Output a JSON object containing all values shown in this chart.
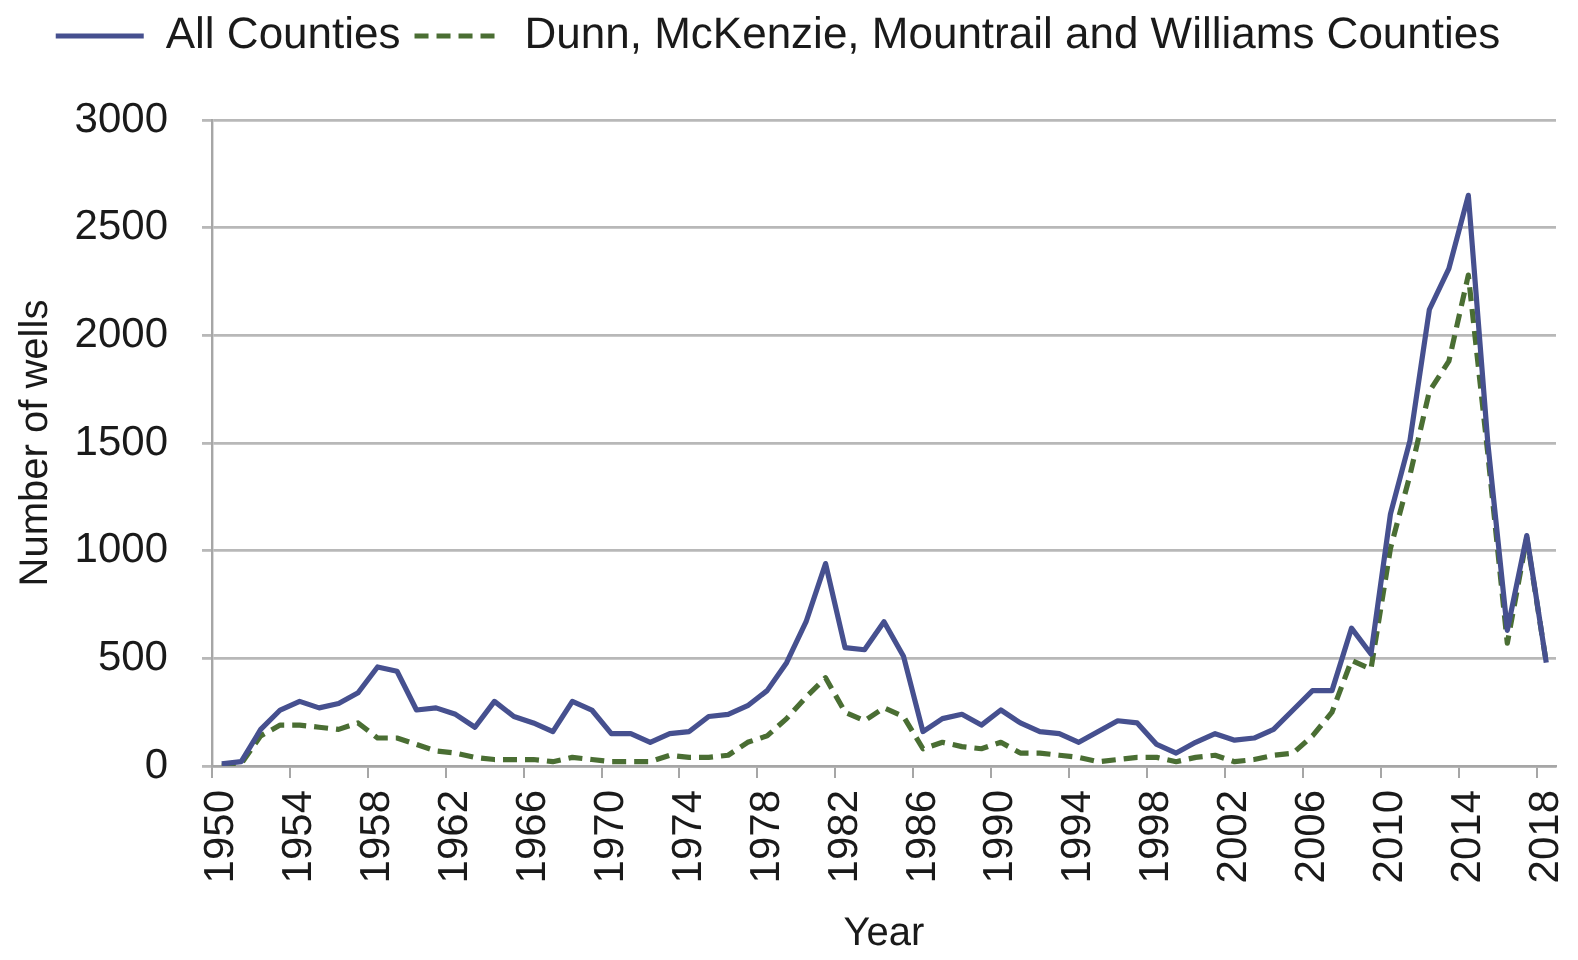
{
  "chart_data": {
    "type": "line",
    "xlabel": "Year",
    "ylabel": "Number of wells",
    "categories": [
      "1950",
      null,
      null,
      null,
      "1954",
      null,
      null,
      null,
      "1958",
      null,
      null,
      null,
      "1962",
      null,
      null,
      null,
      "1966",
      null,
      null,
      null,
      "1970",
      null,
      null,
      null,
      "1974",
      null,
      null,
      null,
      "1978",
      null,
      null,
      null,
      "1982",
      null,
      null,
      null,
      "1986",
      null,
      null,
      null,
      "1990",
      null,
      null,
      null,
      "1994",
      null,
      null,
      null,
      "1998",
      null,
      null,
      null,
      "2002",
      null,
      null,
      null,
      "2006",
      null,
      null,
      null,
      "2010",
      null,
      null,
      null,
      "2014",
      null,
      null,
      null,
      "2018"
    ],
    "series": [
      {
        "name": "All Counties",
        "color": "#46508f",
        "line_style": "solid",
        "values": [
          10,
          20,
          170,
          260,
          300,
          270,
          290,
          340,
          460,
          440,
          260,
          270,
          240,
          180,
          300,
          230,
          200,
          160,
          300,
          260,
          150,
          150,
          110,
          150,
          160,
          230,
          240,
          280,
          350,
          480,
          670,
          940,
          550,
          540,
          670,
          510,
          160,
          220,
          240,
          190,
          260,
          200,
          160,
          150,
          110,
          160,
          210,
          200,
          100,
          60,
          110,
          150,
          120,
          130,
          170,
          260,
          350,
          350,
          640,
          520,
          1170,
          1510,
          2120,
          2310,
          2650,
          1500,
          630,
          1070,
          480
        ]
      },
      {
        "name": "Dunn, McKenzie, Mountrail and Williams Counties",
        "color": "#4a6e33",
        "line_style": "dashed",
        "values": [
          0,
          10,
          140,
          190,
          190,
          180,
          170,
          200,
          130,
          130,
          100,
          70,
          60,
          40,
          30,
          30,
          30,
          20,
          40,
          30,
          20,
          20,
          20,
          50,
          40,
          40,
          50,
          110,
          140,
          220,
          320,
          410,
          250,
          210,
          270,
          230,
          80,
          110,
          90,
          80,
          110,
          60,
          60,
          50,
          40,
          20,
          30,
          40,
          40,
          20,
          40,
          50,
          20,
          30,
          50,
          60,
          140,
          250,
          490,
          450,
          1010,
          1350,
          1740,
          1880,
          2280,
          1450,
          570,
          1060,
          480
        ]
      }
    ],
    "ylim": [
      0,
      3000
    ],
    "yticks": [
      0,
      500,
      1000,
      1500,
      2000,
      2500,
      3000
    ],
    "grid": "y",
    "legend": "top"
  }
}
